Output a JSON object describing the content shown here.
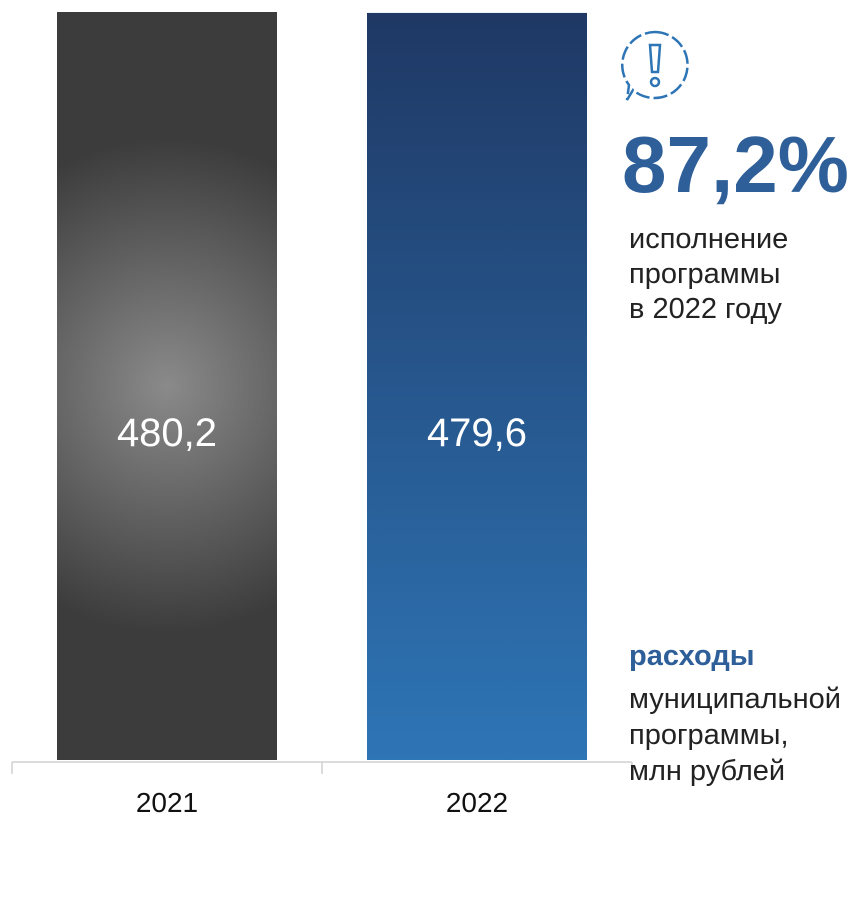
{
  "chart_data": {
    "type": "bar",
    "categories": [
      "2021",
      "2022"
    ],
    "values": [
      480.2,
      479.6
    ],
    "value_labels": [
      "480,2",
      "479,6"
    ],
    "annotations": {
      "headline": "87,2%",
      "headline_text": [
        "исполнение",
        "программы",
        "в 2022 году"
      ],
      "legend_title": "расходы",
      "legend_text": [
        "муниципальной",
        "программы,",
        "млн рублей"
      ]
    }
  }
}
